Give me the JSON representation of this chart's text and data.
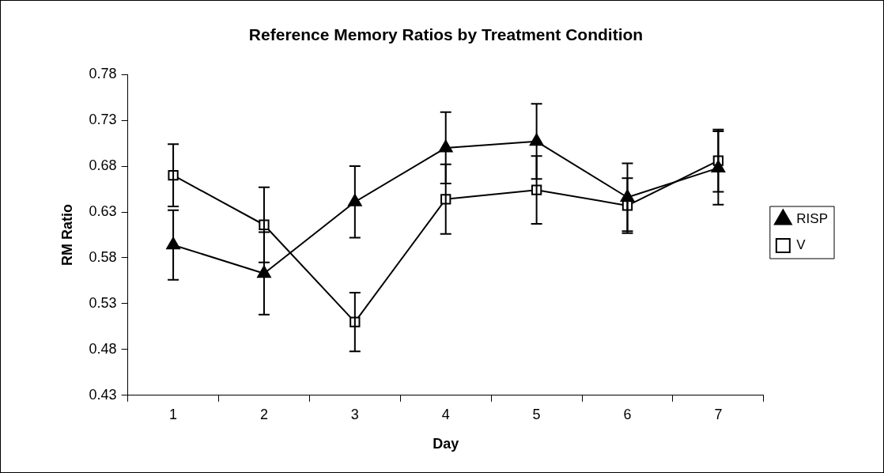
{
  "chart_data": {
    "type": "line",
    "title": "Reference Memory Ratios by Treatment Condition",
    "xlabel": "Day",
    "ylabel": "RM Ratio",
    "categories": [
      "1",
      "2",
      "3",
      "4",
      "5",
      "6",
      "7"
    ],
    "series": [
      {
        "name": "RISP",
        "color": "#000000",
        "marker": "triangle",
        "values": [
          0.594,
          0.563,
          0.641,
          0.7,
          0.707,
          0.646,
          0.678
        ],
        "errors": [
          0.038,
          0.045,
          0.039,
          0.039,
          0.041,
          0.037,
          0.04
        ]
      },
      {
        "name": "V",
        "color": "#000000",
        "marker": "square",
        "values": [
          0.67,
          0.616,
          0.51,
          0.644,
          0.654,
          0.637,
          0.686
        ],
        "errors": [
          0.034,
          0.041,
          0.032,
          0.038,
          0.037,
          0.03,
          0.034
        ]
      }
    ],
    "ylim": [
      0.43,
      0.78
    ],
    "yticks": [
      0.43,
      0.48,
      0.53,
      0.58,
      0.63,
      0.68,
      0.73,
      0.78
    ],
    "grid": false,
    "legend": "right",
    "line_style": "solid"
  }
}
